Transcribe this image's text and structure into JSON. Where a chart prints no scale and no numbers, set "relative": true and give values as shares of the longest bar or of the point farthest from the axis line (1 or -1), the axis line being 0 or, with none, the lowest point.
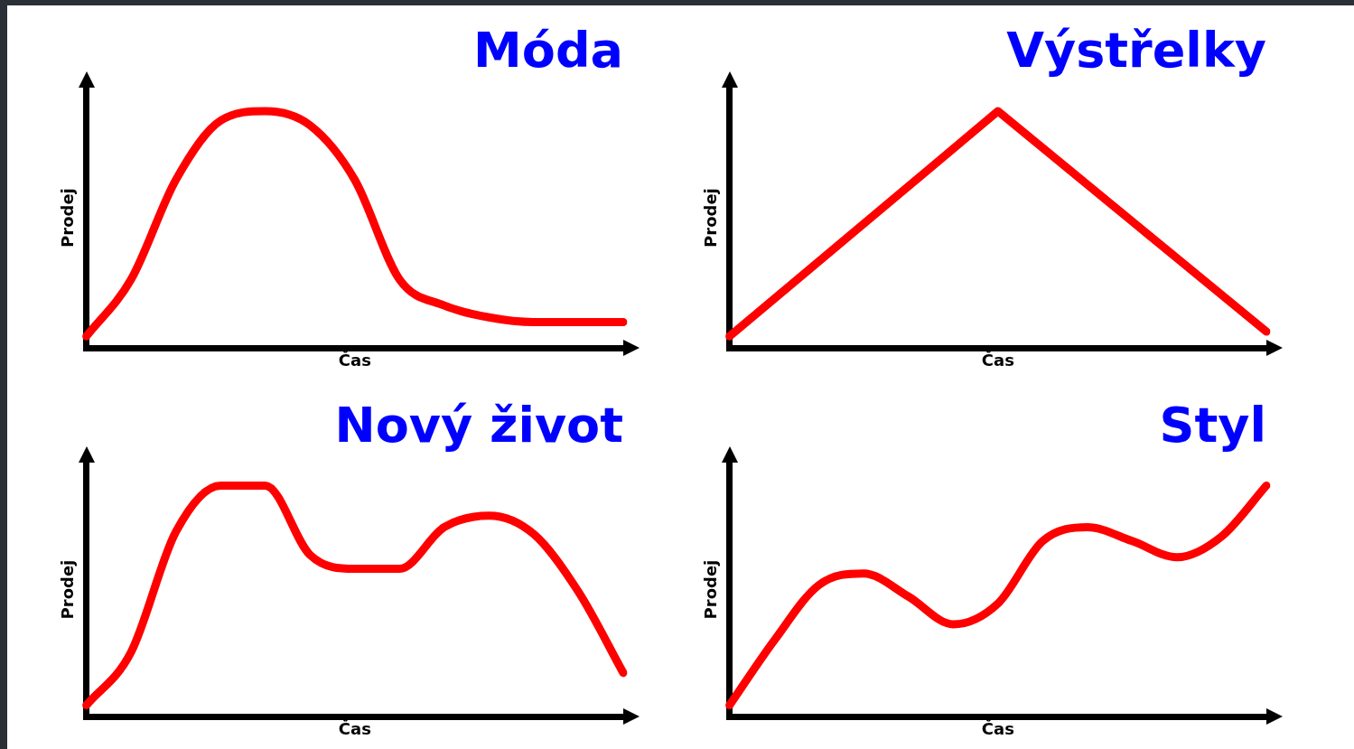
{
  "chart_data": [
    {
      "type": "line",
      "title": "Móda",
      "xlabel": "Čas",
      "ylabel": "Prodej",
      "relative": true,
      "tick_labels": false,
      "grid": false,
      "legend": false,
      "marker": "none",
      "line_style": "solid",
      "categories": [
        null,
        null,
        null,
        null,
        null,
        null,
        null,
        null,
        null,
        null,
        null,
        null,
        null
      ],
      "series": [
        {
          "color": "#ff0000",
          "values": [
            0.05,
            0.29,
            0.71,
            0.96,
            1,
            0.94,
            0.71,
            0.29,
            0.18,
            0.13,
            0.11,
            0.11,
            0.11
          ]
        }
      ]
    },
    {
      "type": "line",
      "title": "Výstřelky",
      "xlabel": "Čas",
      "ylabel": "Prodej",
      "relative": true,
      "tick_labels": false,
      "grid": false,
      "legend": false,
      "marker": "none",
      "line_style": "solid",
      "categories": [
        null,
        null,
        null
      ],
      "series": [
        {
          "color": "#ff0000",
          "values": [
            0.05,
            1,
            0.07
          ]
        }
      ]
    },
    {
      "type": "line",
      "title": "Nový život",
      "xlabel": "Čas",
      "ylabel": "Prodej",
      "relative": true,
      "tick_labels": false,
      "grid": false,
      "legend": false,
      "marker": "none",
      "line_style": "solid",
      "categories": [
        null,
        null,
        null,
        null,
        null,
        null,
        null,
        null,
        null,
        null,
        null,
        null,
        null
      ],
      "series": [
        {
          "color": "#ff0000",
          "values": [
            0.05,
            0.28,
            0.8,
            1,
            1,
            0.7,
            0.64,
            0.64,
            0.82,
            0.87,
            0.79,
            0.54,
            0.19
          ]
        }
      ]
    },
    {
      "type": "line",
      "title": "Styl",
      "xlabel": "Čas",
      "ylabel": "Prodej",
      "relative": true,
      "tick_labels": false,
      "grid": false,
      "legend": false,
      "marker": "none",
      "line_style": "solid",
      "categories": [
        null,
        null,
        null,
        null,
        null,
        null,
        null,
        null,
        null,
        null,
        null,
        null,
        null
      ],
      "series": [
        {
          "color": "#ff0000",
          "values": [
            0.05,
            0.33,
            0.57,
            0.62,
            0.52,
            0.4,
            0.49,
            0.76,
            0.82,
            0.76,
            0.69,
            0.78,
            1
          ]
        }
      ]
    }
  ]
}
